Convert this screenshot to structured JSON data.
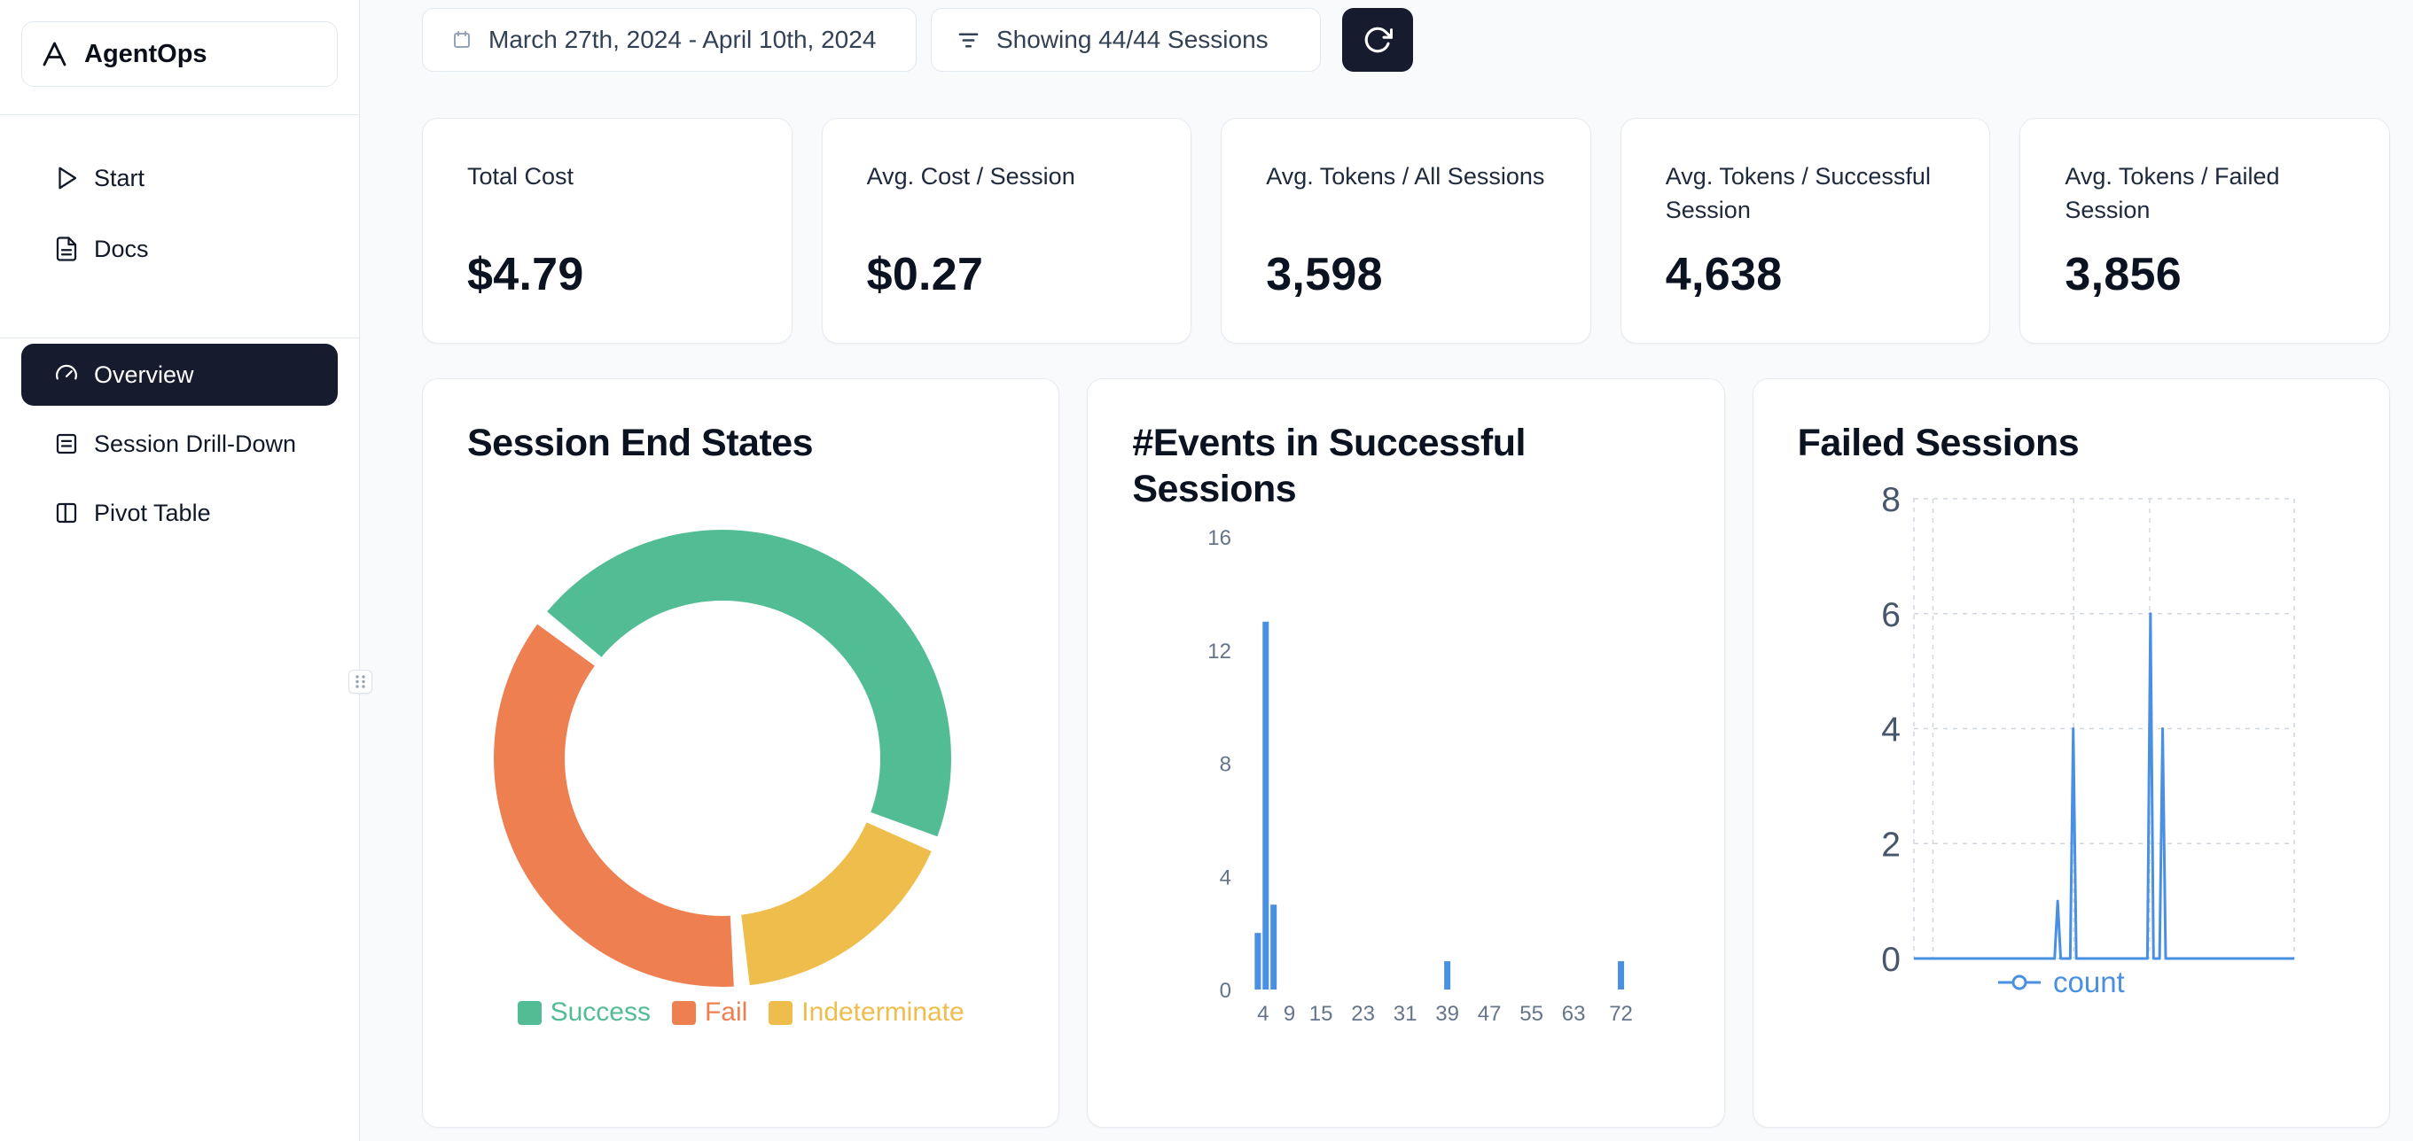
{
  "app": {
    "name": "AgentOps"
  },
  "sidebar": {
    "items": [
      {
        "label": "Start"
      },
      {
        "label": "Docs"
      },
      {
        "label": "Overview",
        "active": true
      },
      {
        "label": "Session Drill-Down"
      },
      {
        "label": "Pivot Table"
      }
    ]
  },
  "topbar": {
    "date_range": "March 27th, 2024 - April 10th, 2024",
    "sessions_filter": "Showing 44/44 Sessions"
  },
  "stats": [
    {
      "label": "Total Cost",
      "value": "$4.79"
    },
    {
      "label": "Avg. Cost / Session",
      "value": "$0.27"
    },
    {
      "label": "Avg. Tokens / All Sessions",
      "value": "3,598"
    },
    {
      "label": "Avg. Tokens / Successful Session",
      "value": "4,638"
    },
    {
      "label": "Avg. Tokens / Failed Session",
      "value": "3,856"
    }
  ],
  "colors": {
    "accent_dark": "#161b2d",
    "success": "#52bd95",
    "fail": "#ed7f51",
    "indeterminate": "#efbd4c",
    "chart_blue": "#4a90e2"
  },
  "chart_data": [
    {
      "type": "pie",
      "title": "Session End States",
      "donut": true,
      "segments": [
        {
          "label": "Success",
          "value": 46,
          "color": "#52bd95"
        },
        {
          "label": "Fail",
          "value": 37,
          "color": "#ed7f51"
        },
        {
          "label": "Indeterminate",
          "value": 17,
          "color": "#efbd4c"
        }
      ],
      "legend": [
        "Success",
        "Fail",
        "Indeterminate"
      ],
      "legend_position": "bottom",
      "start_angle_deg": -20,
      "pad_angle_deg": 4,
      "direction": "ccw"
    },
    {
      "type": "bar",
      "title": "#Events in Successful Sessions",
      "color": "#4a90e2",
      "x_ticks": [
        4,
        9,
        15,
        23,
        31,
        39,
        47,
        55,
        63,
        72
      ],
      "y_ticks": [
        0,
        4,
        8,
        12,
        16
      ],
      "x_range": [
        1,
        81
      ],
      "y_range": [
        0,
        16
      ],
      "bars": [
        {
          "x": 3,
          "count": 2
        },
        {
          "x": 4.5,
          "count": 13
        },
        {
          "x": 6,
          "count": 3
        },
        {
          "x": 39,
          "count": 1
        },
        {
          "x": 72,
          "count": 1
        }
      ]
    },
    {
      "type": "line",
      "title": "Failed Sessions",
      "series": [
        {
          "name": "count",
          "color": "#4a90e2"
        }
      ],
      "y_ticks": [
        0,
        2,
        4,
        6,
        8
      ],
      "y_range": [
        0,
        8
      ],
      "x_range": [
        0,
        1
      ],
      "points": [
        [
          0,
          0
        ],
        [
          0.37,
          0
        ],
        [
          0.378,
          1
        ],
        [
          0.386,
          0
        ],
        [
          0.411,
          0
        ],
        [
          0.419,
          4
        ],
        [
          0.427,
          0
        ],
        [
          0.614,
          0
        ],
        [
          0.622,
          6
        ],
        [
          0.63,
          0
        ],
        [
          0.646,
          0
        ],
        [
          0.654,
          4
        ],
        [
          0.662,
          0
        ],
        [
          1,
          0
        ]
      ],
      "grid": {
        "dashed": true,
        "v_lines": [
          0.05,
          0.42,
          0.62
        ]
      },
      "legend": "count",
      "legend_position": "bottom"
    }
  ]
}
